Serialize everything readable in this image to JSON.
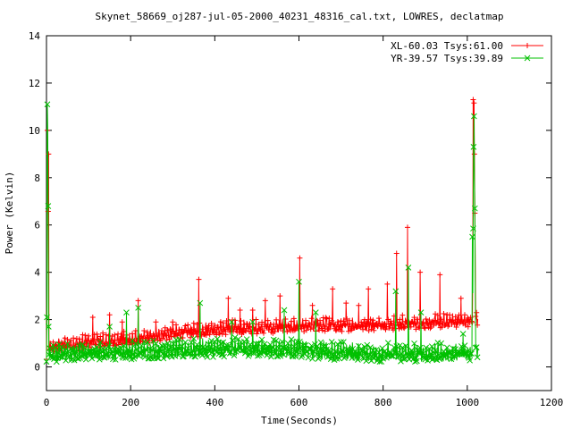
{
  "chart_data": {
    "type": "line",
    "title": "Skynet_58669_oj287-jul-05-2000_40231_48316_cal.txt, LOWRES, declatmap",
    "xlabel": "Time(Seconds)",
    "ylabel": "Power (Kelvin)",
    "xlim": [
      0,
      1200
    ],
    "ylim": [
      -1,
      14
    ],
    "xticks": [
      0,
      200,
      400,
      600,
      800,
      1000,
      1200
    ],
    "yticks": [
      0,
      2,
      4,
      6,
      8,
      10,
      12,
      14
    ],
    "xtick_labels": [
      "0",
      "200",
      "400",
      "600",
      "800",
      "1000",
      "1200"
    ],
    "ytick_labels": [
      "0",
      "2",
      "4",
      "6",
      "8",
      "10",
      "12",
      "14"
    ],
    "grid": false,
    "legend_position": "top-right",
    "series": [
      {
        "name": "XL-60.03 Tsys:61.00",
        "color": "#ff0000",
        "marker": "plus",
        "base": [
          [
            0,
            0.2
          ],
          [
            3,
            9.2
          ],
          [
            6,
            0.6
          ],
          [
            20,
            0.7
          ],
          [
            100,
            0.9
          ],
          [
            200,
            1.0
          ],
          [
            300,
            1.25
          ],
          [
            400,
            1.45
          ],
          [
            500,
            1.5
          ],
          [
            600,
            1.55
          ],
          [
            700,
            1.6
          ],
          [
            800,
            1.65
          ],
          [
            900,
            1.7
          ],
          [
            1000,
            1.8
          ],
          [
            1012,
            1.8
          ],
          [
            1016,
            11.0
          ],
          [
            1020,
            1.8
          ],
          [
            1025,
            1.8
          ]
        ],
        "spikes": [
          [
            2,
            10.0
          ],
          [
            5,
            9.0
          ],
          [
            110,
            2.1
          ],
          [
            150,
            2.2
          ],
          [
            180,
            1.9
          ],
          [
            218,
            2.8
          ],
          [
            260,
            1.9
          ],
          [
            300,
            1.9
          ],
          [
            362,
            3.7
          ],
          [
            432,
            2.9
          ],
          [
            460,
            2.4
          ],
          [
            490,
            2.4
          ],
          [
            520,
            2.8
          ],
          [
            555,
            3.0
          ],
          [
            602,
            4.6
          ],
          [
            632,
            2.6
          ],
          [
            680,
            3.3
          ],
          [
            712,
            2.7
          ],
          [
            742,
            2.6
          ],
          [
            765,
            3.3
          ],
          [
            810,
            3.5
          ],
          [
            832,
            4.8
          ],
          [
            858,
            5.9
          ],
          [
            888,
            4.0
          ],
          [
            935,
            3.9
          ],
          [
            985,
            2.9
          ],
          [
            1014,
            11.3
          ],
          [
            1017,
            9.0
          ]
        ]
      },
      {
        "name": "YR-39.57 Tsys:39.89",
        "color": "#00c000",
        "marker": "cross",
        "base": [
          [
            0,
            0.1
          ],
          [
            3,
            10.0
          ],
          [
            6,
            0.3
          ],
          [
            20,
            0.35
          ],
          [
            100,
            0.4
          ],
          [
            200,
            0.45
          ],
          [
            300,
            0.5
          ],
          [
            400,
            0.55
          ],
          [
            500,
            0.6
          ],
          [
            600,
            0.5
          ],
          [
            700,
            0.4
          ],
          [
            800,
            0.35
          ],
          [
            900,
            0.35
          ],
          [
            1000,
            0.35
          ],
          [
            1012,
            0.35
          ],
          [
            1016,
            10.6
          ],
          [
            1020,
            0.5
          ],
          [
            1025,
            0.5
          ]
        ],
        "spikes": [
          [
            1,
            2.1
          ],
          [
            2,
            11.1
          ],
          [
            5,
            1.7
          ],
          [
            150,
            1.7
          ],
          [
            190,
            2.3
          ],
          [
            218,
            2.5
          ],
          [
            365,
            2.7
          ],
          [
            440,
            1.9
          ],
          [
            490,
            1.9
          ],
          [
            565,
            2.4
          ],
          [
            600,
            3.6
          ],
          [
            640,
            2.3
          ],
          [
            830,
            3.2
          ],
          [
            860,
            4.2
          ],
          [
            890,
            2.3
          ],
          [
            990,
            1.4
          ],
          [
            1012,
            5.5
          ],
          [
            1015,
            9.3
          ],
          [
            1018,
            6.7
          ]
        ]
      }
    ]
  }
}
